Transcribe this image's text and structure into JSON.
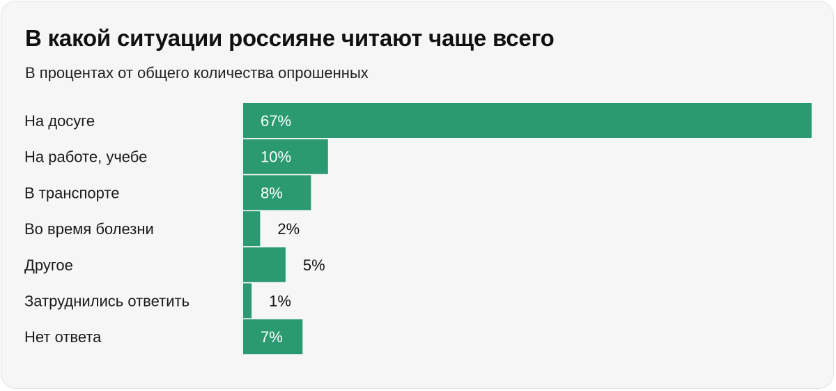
{
  "header": {
    "title": "В какой ситуации россияне читают чаще всего",
    "subtitle": "В процентах от общего количества опрошенных"
  },
  "colors": {
    "bar": "#2b9a72",
    "label_inside": "#ffffff",
    "label_outside": "#111111",
    "background": "#f6f6f6"
  },
  "chart_data": {
    "type": "bar",
    "orientation": "horizontal",
    "title": "В какой ситуации россияне читают чаще всего",
    "subtitle": "В процентах от общего количества опрошенных",
    "categories": [
      "На досуге",
      "На работе, учебе",
      "В транспорте",
      "Во время болезни",
      "Другое",
      "Затруднились ответить",
      "Нет ответа"
    ],
    "values": [
      67,
      10,
      8,
      2,
      5,
      1,
      7
    ],
    "value_labels": [
      "67%",
      "10%",
      "8%",
      "2%",
      "5%",
      "1%",
      "7%"
    ],
    "unit": "%",
    "xlim": [
      0,
      67
    ],
    "grid": false,
    "legend": "none"
  }
}
